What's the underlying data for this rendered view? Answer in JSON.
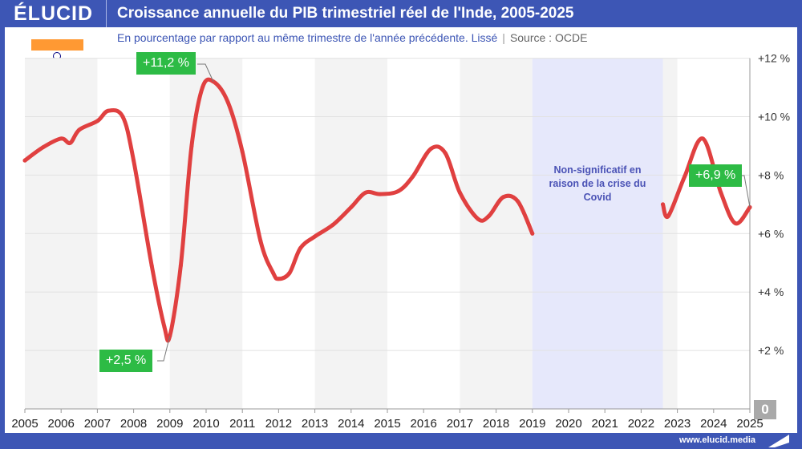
{
  "header": {
    "logo": "ÉLUCID",
    "title": "Croissance annuelle du PIB trimestriel réel de l'Inde, 2005-2025"
  },
  "subtitle": "En pourcentage par rapport au même trimestre de l'année précédente. Lissé",
  "source": "Source : OCDE",
  "footer": {
    "site": "www.elucid.media"
  },
  "flag": {
    "country": "India",
    "colors": [
      "#ff9933",
      "#ffffff",
      "#138808"
    ]
  },
  "chart_data": {
    "type": "line",
    "xlim": [
      2005,
      2025
    ],
    "ylim": [
      0,
      12
    ],
    "x_ticks": [
      "2005",
      "2006",
      "2007",
      "2008",
      "2009",
      "2010",
      "2011",
      "2012",
      "2013",
      "2014",
      "2015",
      "2016",
      "2017",
      "2018",
      "2019",
      "2020",
      "2021",
      "2022",
      "2023",
      "2024",
      "2025"
    ],
    "y_ticks": [
      "+2 %",
      "+4 %",
      "+6 %",
      "+8 %",
      "+10 %",
      "+12 %"
    ],
    "zero_label": "0",
    "y_axis_side": "right",
    "grid": true,
    "line_color": "#e04040",
    "series": [
      {
        "segment": "before-covid",
        "points": [
          [
            2005.0,
            8.5
          ],
          [
            2005.5,
            8.95
          ],
          [
            2006.0,
            9.25
          ],
          [
            2006.25,
            9.1
          ],
          [
            2006.5,
            9.55
          ],
          [
            2007.0,
            9.85
          ],
          [
            2007.3,
            10.2
          ],
          [
            2007.7,
            10.0
          ],
          [
            2008.0,
            8.5
          ],
          [
            2008.5,
            4.9
          ],
          [
            2008.85,
            2.8
          ],
          [
            2009.0,
            2.5
          ],
          [
            2009.3,
            4.9
          ],
          [
            2009.6,
            9.0
          ],
          [
            2009.9,
            11.0
          ],
          [
            2010.2,
            11.2
          ],
          [
            2010.6,
            10.5
          ],
          [
            2011.0,
            8.8
          ],
          [
            2011.5,
            5.75
          ],
          [
            2011.85,
            4.65
          ],
          [
            2012.0,
            4.45
          ],
          [
            2012.3,
            4.65
          ],
          [
            2012.6,
            5.5
          ],
          [
            2013.0,
            5.9
          ],
          [
            2013.5,
            6.3
          ],
          [
            2014.0,
            6.9
          ],
          [
            2014.4,
            7.4
          ],
          [
            2014.8,
            7.35
          ],
          [
            2015.3,
            7.45
          ],
          [
            2015.7,
            7.95
          ],
          [
            2016.2,
            8.9
          ],
          [
            2016.6,
            8.75
          ],
          [
            2017.0,
            7.4
          ],
          [
            2017.5,
            6.5
          ],
          [
            2017.8,
            6.6
          ],
          [
            2018.2,
            7.25
          ],
          [
            2018.6,
            7.1
          ],
          [
            2019.0,
            6.0
          ]
        ]
      },
      {
        "segment": "after-covid",
        "points": [
          [
            2022.6,
            7.0
          ],
          [
            2022.75,
            6.6
          ],
          [
            2023.2,
            7.95
          ],
          [
            2023.7,
            9.25
          ],
          [
            2024.2,
            7.4
          ],
          [
            2024.6,
            6.35
          ],
          [
            2025.0,
            6.9
          ]
        ]
      }
    ],
    "shaded_region": {
      "x": [
        2019.0,
        2022.6
      ],
      "color": "#e6e8fb",
      "text": "Non-significatif en raison de la crise du Covid"
    },
    "annotations": [
      {
        "text": "+11,2 %",
        "x": 2010.2,
        "y": 11.2
      },
      {
        "text": "+2,5 %",
        "x": 2009.0,
        "y": 2.5
      },
      {
        "text": "+6,9 %",
        "x": 2025.0,
        "y": 6.9
      }
    ]
  }
}
